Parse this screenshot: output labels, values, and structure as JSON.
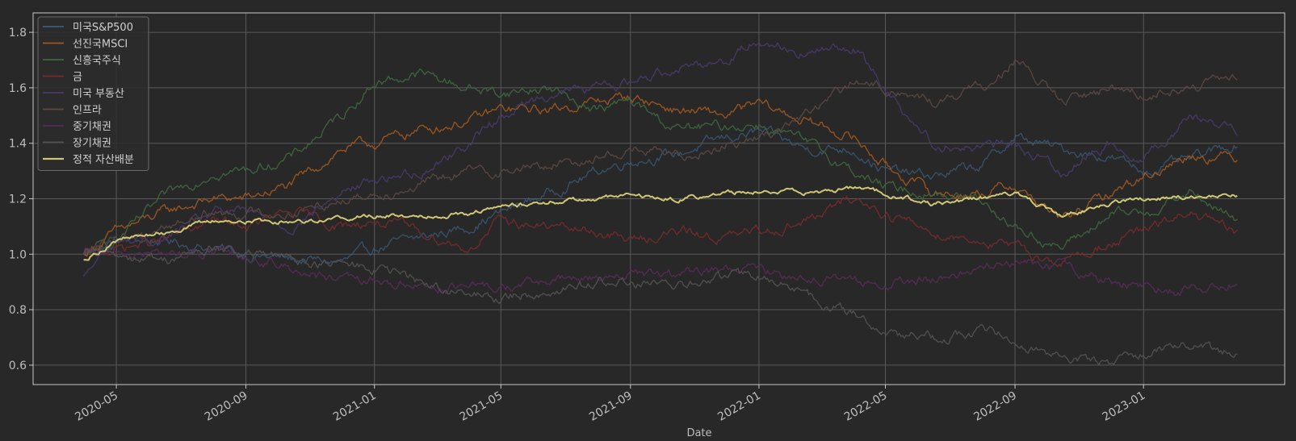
{
  "chart_data": {
    "type": "line",
    "title": "",
    "xlabel": "Date",
    "ylabel": "",
    "ylim": [
      0.53,
      1.87
    ],
    "xlim": [
      "2020-02-12",
      "2023-05-15"
    ],
    "grid": true,
    "legend_position": "top-left",
    "x_ticks": [
      "2020-05",
      "2020-09",
      "2021-01",
      "2021-05",
      "2021-09",
      "2022-01",
      "2022-05",
      "2022-09",
      "2023-01"
    ],
    "y_ticks": [
      "0.6",
      "0.8",
      "1.0",
      "1.2",
      "1.4",
      "1.6",
      "1.8"
    ],
    "x_anchor_dates": [
      "2020-03-31",
      "2020-05-01",
      "2020-06-15",
      "2020-08-01",
      "2020-09-01",
      "2020-10-15",
      "2020-12-01",
      "2021-01-01",
      "2021-02-15",
      "2021-04-01",
      "2021-05-01",
      "2021-06-15",
      "2021-08-01",
      "2021-09-01",
      "2021-10-15",
      "2021-12-01",
      "2022-01-01",
      "2022-02-15",
      "2022-04-01",
      "2022-05-01",
      "2022-06-15",
      "2022-08-01",
      "2022-09-01",
      "2022-10-15",
      "2022-12-01",
      "2023-01-01",
      "2023-02-15",
      "2023-03-31"
    ],
    "series": [
      {
        "name": "미국S&P500",
        "color": "#3d5f82",
        "opacity": 0.7,
        "values": [
          1.0,
          1.05,
          1.05,
          1.02,
          1.0,
          0.98,
          0.97,
          1.02,
          1.06,
          1.1,
          1.15,
          1.22,
          1.3,
          1.34,
          1.36,
          1.42,
          1.44,
          1.38,
          1.38,
          1.3,
          1.28,
          1.32,
          1.42,
          1.38,
          1.35,
          1.3,
          1.34,
          1.4
        ]
      },
      {
        "name": "선진국MSCI",
        "color": "#a85a1e",
        "opacity": 0.85,
        "values": [
          1.0,
          1.08,
          1.15,
          1.2,
          1.2,
          1.25,
          1.38,
          1.4,
          1.45,
          1.48,
          1.52,
          1.52,
          1.55,
          1.57,
          1.52,
          1.5,
          1.54,
          1.48,
          1.42,
          1.32,
          1.22,
          1.22,
          1.25,
          1.12,
          1.22,
          1.28,
          1.36,
          1.35
        ]
      },
      {
        "name": "신흥국주식",
        "color": "#3f6a40",
        "opacity": 0.85,
        "values": [
          1.0,
          1.05,
          1.2,
          1.3,
          1.3,
          1.35,
          1.5,
          1.62,
          1.65,
          1.6,
          1.58,
          1.6,
          1.52,
          1.55,
          1.45,
          1.46,
          1.47,
          1.4,
          1.3,
          1.24,
          1.22,
          1.2,
          1.1,
          1.02,
          1.14,
          1.15,
          1.22,
          1.12
        ]
      },
      {
        "name": "금",
        "color": "#7a2a2a",
        "opacity": 0.85,
        "values": [
          1.0,
          1.02,
          1.05,
          1.12,
          1.1,
          1.15,
          1.1,
          1.12,
          1.08,
          1.02,
          1.12,
          1.1,
          1.08,
          1.05,
          1.08,
          1.06,
          1.08,
          1.12,
          1.2,
          1.15,
          1.08,
          1.05,
          1.02,
          0.97,
          1.04,
          1.08,
          1.15,
          1.07
        ]
      },
      {
        "name": "미국 부동산",
        "color": "#4a3a6e",
        "opacity": 0.85,
        "values": [
          0.92,
          1.05,
          1.05,
          1.15,
          1.15,
          1.1,
          1.22,
          1.27,
          1.3,
          1.4,
          1.5,
          1.58,
          1.6,
          1.62,
          1.68,
          1.7,
          1.78,
          1.72,
          1.75,
          1.6,
          1.4,
          1.38,
          1.4,
          1.3,
          1.4,
          1.35,
          1.5,
          1.45
        ]
      },
      {
        "name": "인프라",
        "color": "#5c4a44",
        "opacity": 0.85,
        "values": [
          1.0,
          1.05,
          1.1,
          1.15,
          1.15,
          1.15,
          1.2,
          1.22,
          1.25,
          1.3,
          1.3,
          1.32,
          1.35,
          1.38,
          1.35,
          1.4,
          1.42,
          1.5,
          1.62,
          1.6,
          1.55,
          1.6,
          1.7,
          1.55,
          1.6,
          1.58,
          1.6,
          1.63
        ]
      },
      {
        "name": "중기채권",
        "color": "#5a2a5a",
        "opacity": 0.85,
        "values": [
          1.0,
          1.0,
          1.0,
          1.0,
          0.99,
          0.95,
          0.9,
          0.9,
          0.89,
          0.88,
          0.88,
          0.9,
          0.92,
          0.93,
          0.92,
          0.95,
          0.94,
          0.92,
          0.9,
          0.89,
          0.91,
          0.95,
          0.97,
          0.95,
          0.9,
          0.89,
          0.87,
          0.9
        ]
      },
      {
        "name": "장기채권",
        "color": "#555555",
        "opacity": 0.85,
        "values": [
          1.0,
          1.0,
          0.98,
          1.02,
          1.0,
          0.98,
          0.96,
          0.95,
          0.9,
          0.85,
          0.84,
          0.87,
          0.9,
          0.9,
          0.88,
          0.92,
          0.92,
          0.85,
          0.78,
          0.72,
          0.7,
          0.72,
          0.7,
          0.63,
          0.6,
          0.65,
          0.68,
          0.64
        ]
      },
      {
        "name": "정적 자산배분",
        "color": "#cfc774",
        "opacity": 1.0,
        "values": [
          0.98,
          1.05,
          1.08,
          1.12,
          1.12,
          1.12,
          1.13,
          1.14,
          1.14,
          1.15,
          1.17,
          1.19,
          1.2,
          1.21,
          1.2,
          1.22,
          1.23,
          1.22,
          1.24,
          1.22,
          1.18,
          1.2,
          1.22,
          1.14,
          1.18,
          1.2,
          1.21,
          1.21
        ]
      }
    ]
  }
}
